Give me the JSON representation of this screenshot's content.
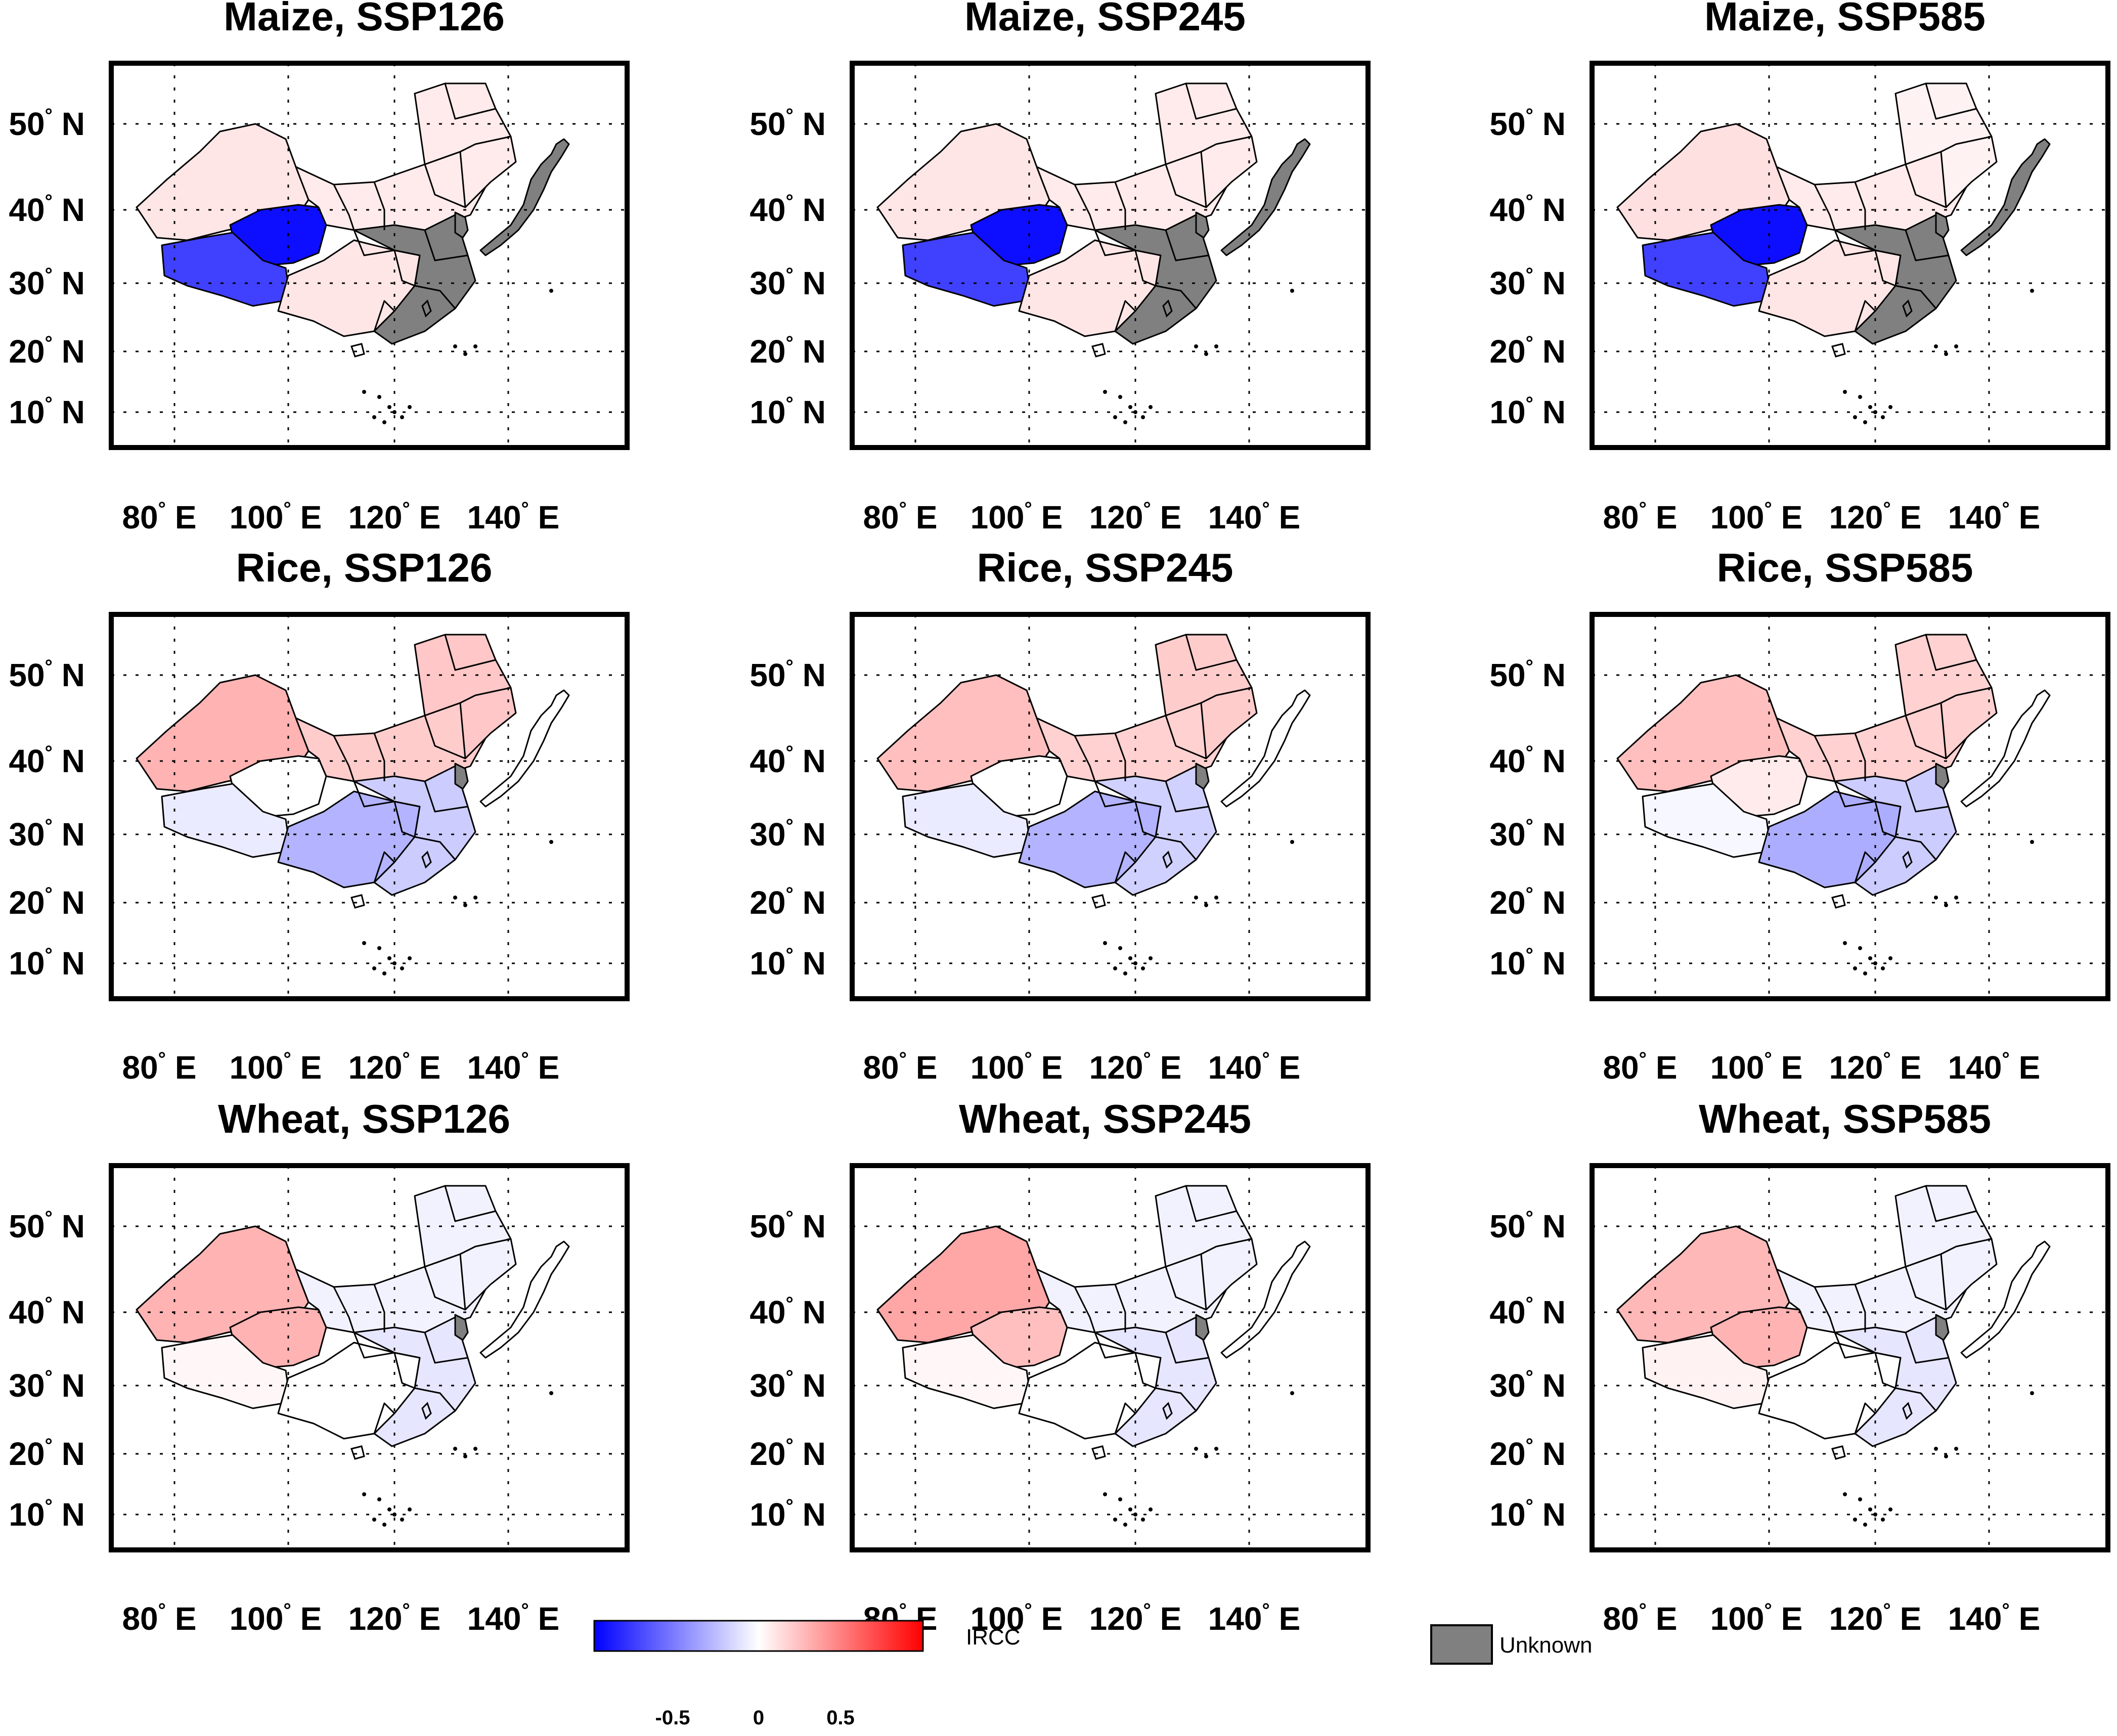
{
  "figure": {
    "panels": [
      {
        "id": "maize-ssp126",
        "title": "Maize, SSP126",
        "crop": "Maize",
        "scenario": "SSP126",
        "regions": {
          "northwest": 0.1,
          "tibet": -0.75,
          "qinghai": -0.95,
          "north": 0.08,
          "northeast": 0.08,
          "southwest": 0.1,
          "southeast": "unknown",
          "korea": "unknown",
          "japan": "unknown"
        }
      },
      {
        "id": "maize-ssp245",
        "title": "Maize, SSP245",
        "crop": "Maize",
        "scenario": "SSP245",
        "regions": {
          "northwest": 0.1,
          "tibet": -0.75,
          "qinghai": -0.95,
          "north": 0.08,
          "northeast": 0.08,
          "southwest": 0.1,
          "southeast": "unknown",
          "korea": "unknown",
          "japan": "unknown"
        }
      },
      {
        "id": "maize-ssp585",
        "title": "Maize, SSP585",
        "crop": "Maize",
        "scenario": "SSP585",
        "regions": {
          "northwest": 0.12,
          "tibet": -0.75,
          "qinghai": -0.95,
          "north": 0.08,
          "northeast": 0.05,
          "southwest": 0.1,
          "southeast": "unknown",
          "korea": "unknown",
          "japan": "unknown"
        }
      },
      {
        "id": "rice-ssp126",
        "title": "Rice, SSP126",
        "crop": "Rice",
        "scenario": "SSP126",
        "regions": {
          "northwest": 0.3,
          "tibet": -0.08,
          "qinghai": 0.0,
          "north": 0.2,
          "northeast": 0.22,
          "southwest": -0.3,
          "southeast": -0.2,
          "korea": "unknown",
          "japan": 0.0
        }
      },
      {
        "id": "rice-ssp245",
        "title": "Rice, SSP245",
        "crop": "Rice",
        "scenario": "SSP245",
        "regions": {
          "northwest": 0.25,
          "tibet": -0.08,
          "qinghai": 0.0,
          "north": 0.18,
          "northeast": 0.2,
          "southwest": -0.3,
          "southeast": -0.18,
          "korea": "unknown",
          "japan": 0.0
        }
      },
      {
        "id": "rice-ssp585",
        "title": "Rice, SSP585",
        "crop": "Rice",
        "scenario": "SSP585",
        "regions": {
          "northwest": 0.25,
          "tibet": -0.03,
          "qinghai": 0.08,
          "north": 0.18,
          "northeast": 0.18,
          "southwest": -0.32,
          "southeast": -0.2,
          "korea": "unknown",
          "japan": 0.0
        }
      },
      {
        "id": "wheat-ssp126",
        "title": "Wheat, SSP126",
        "crop": "Wheat",
        "scenario": "SSP126",
        "regions": {
          "northwest": 0.3,
          "tibet": 0.03,
          "qinghai": 0.3,
          "north": -0.05,
          "northeast": -0.05,
          "southwest": 0.0,
          "southeast": -0.1,
          "korea": "unknown",
          "japan": 0.0
        }
      },
      {
        "id": "wheat-ssp245",
        "title": "Wheat, SSP245",
        "crop": "Wheat",
        "scenario": "SSP245",
        "regions": {
          "northwest": 0.35,
          "tibet": 0.03,
          "qinghai": 0.25,
          "north": -0.05,
          "northeast": -0.05,
          "southwest": 0.0,
          "southeast": -0.1,
          "korea": "unknown",
          "japan": 0.0
        }
      },
      {
        "id": "wheat-ssp585",
        "title": "Wheat, SSP585",
        "crop": "Wheat",
        "scenario": "SSP585",
        "regions": {
          "northwest": 0.28,
          "tibet": 0.05,
          "qinghai": 0.3,
          "north": -0.05,
          "northeast": -0.05,
          "southwest": 0.0,
          "southeast": -0.1,
          "korea": "unknown",
          "japan": 0.0
        }
      }
    ],
    "lat_ticks": [
      {
        "deg": "50",
        "hemi": "N"
      },
      {
        "deg": "40",
        "hemi": "N"
      },
      {
        "deg": "30",
        "hemi": "N"
      },
      {
        "deg": "20",
        "hemi": "N"
      },
      {
        "deg": "10",
        "hemi": "N"
      }
    ],
    "lon_ticks": [
      {
        "deg": "80",
        "hemi": "E"
      },
      {
        "deg": "100",
        "hemi": "E"
      },
      {
        "deg": "120",
        "hemi": "E"
      },
      {
        "deg": "140",
        "hemi": "E"
      }
    ],
    "degree_symbol": "°",
    "colorbar": {
      "label": "IRCC",
      "ticks": [
        "-0.5",
        "0",
        "0.5"
      ],
      "range": [
        -1,
        1
      ],
      "color_low": "#0000ff",
      "color_mid": "#ffffff",
      "color_high": "#ff0000"
    },
    "unknown_legend": {
      "label": "Unknown",
      "color": "#808080"
    }
  }
}
